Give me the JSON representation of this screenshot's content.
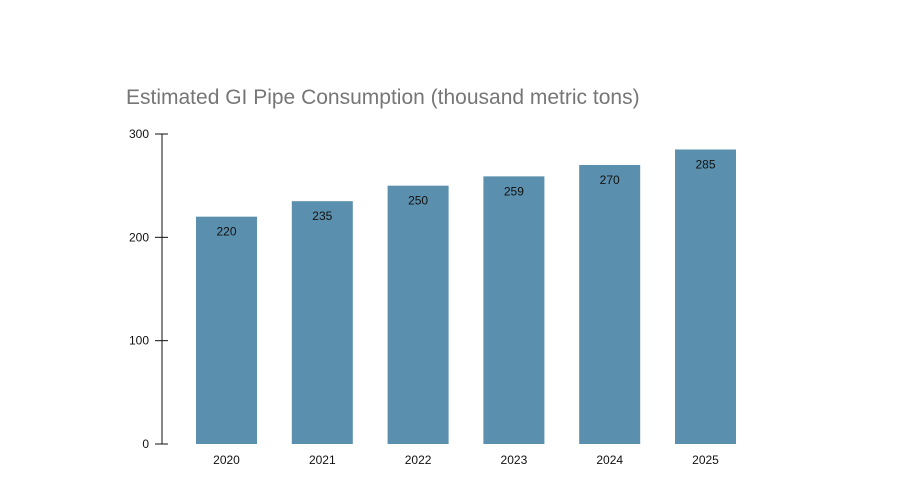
{
  "chart_data": {
    "type": "bar",
    "title": "Estimated GI Pipe Consumption (thousand metric tons)",
    "xlabel": "",
    "ylabel": "",
    "categories": [
      "2020",
      "2021",
      "2022",
      "2023",
      "2024",
      "2025"
    ],
    "values": [
      220,
      235,
      250,
      259,
      270,
      285
    ],
    "data_labels": [
      "220",
      "235",
      "250",
      "259",
      "270",
      "285"
    ],
    "ylim": [
      0,
      300
    ],
    "yticks": [
      0,
      100,
      200,
      300
    ],
    "ytick_labels": [
      "0",
      "100",
      "200",
      "300"
    ],
    "grid": false,
    "legend": "none",
    "bar_color": "#5a8fad"
  }
}
